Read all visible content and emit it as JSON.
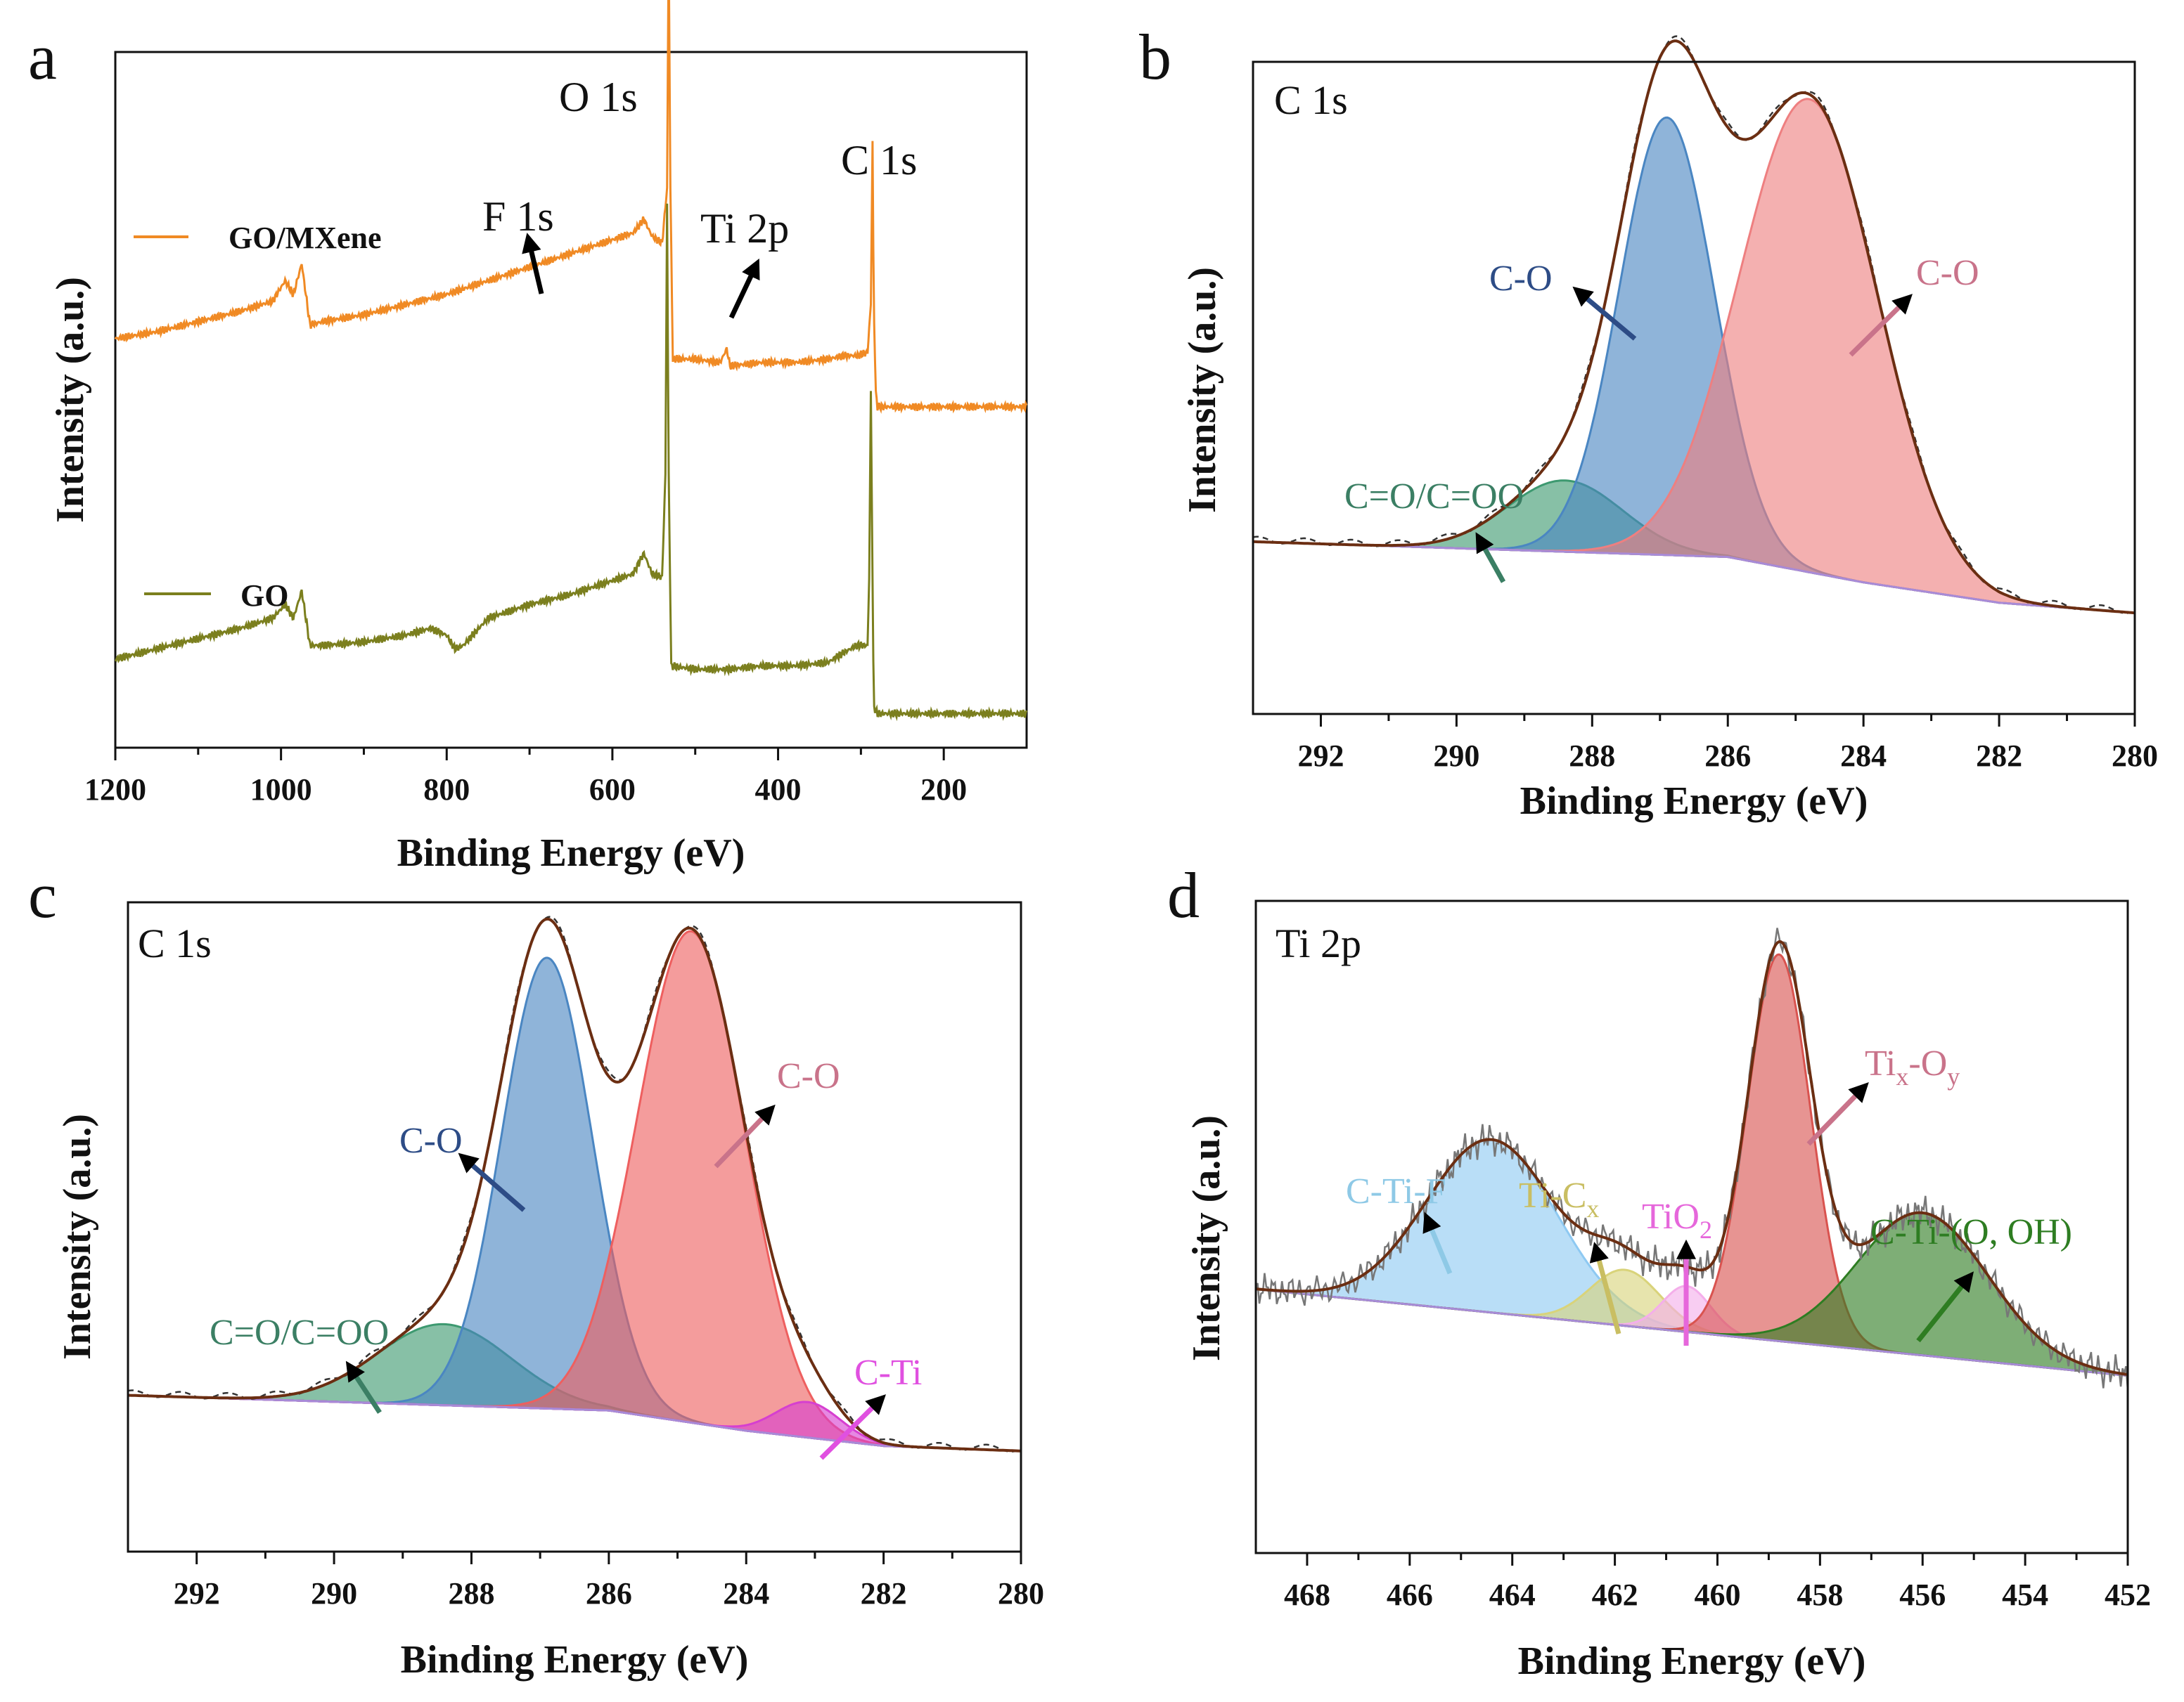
{
  "chart_data": [
    {
      "panel": "a",
      "type": "line",
      "title": "",
      "xlabel": "Binding Energy (eV)",
      "ylabel": "Intensity (a.u.)",
      "xlim": [
        1200,
        100
      ],
      "xticks": [
        1200,
        1000,
        800,
        600,
        400,
        200
      ],
      "x_reversed": true,
      "series": [
        {
          "name": "GO/MXene",
          "color": "#F08A24",
          "points": [
            [
              1200,
              0.6
            ],
            [
              1150,
              0.61
            ],
            [
              1100,
              0.625
            ],
            [
              1050,
              0.64
            ],
            [
              1010,
              0.655
            ],
            [
              995,
              0.685
            ],
            [
              985,
              0.665
            ],
            [
              975,
              0.71
            ],
            [
              965,
              0.62
            ],
            [
              950,
              0.625
            ],
            [
              900,
              0.635
            ],
            [
              850,
              0.65
            ],
            [
              800,
              0.665
            ],
            [
              750,
              0.685
            ],
            [
              700,
              0.705
            ],
            [
              650,
              0.725
            ],
            [
              600,
              0.745
            ],
            [
              575,
              0.755
            ],
            [
              562,
              0.775
            ],
            [
              552,
              0.75
            ],
            [
              540,
              0.74
            ],
            [
              534,
              0.82
            ],
            [
              532,
              1.18
            ],
            [
              530,
              0.82
            ],
            [
              527,
              0.57
            ],
            [
              500,
              0.57
            ],
            [
              470,
              0.565
            ],
            [
              462,
              0.585
            ],
            [
              458,
              0.56
            ],
            [
              420,
              0.565
            ],
            [
              380,
              0.565
            ],
            [
              340,
              0.57
            ],
            [
              320,
              0.575
            ],
            [
              305,
              0.575
            ],
            [
              292,
              0.58
            ],
            [
              288,
              0.65
            ],
            [
              286,
              0.89
            ],
            [
              284.5,
              0.65
            ],
            [
              282,
              0.52
            ],
            [
              280,
              0.5
            ],
            [
              250,
              0.5
            ],
            [
              200,
              0.5
            ],
            [
              150,
              0.5
            ],
            [
              100,
              0.5
            ]
          ]
        },
        {
          "name": "GO",
          "color": "#7B7F1E",
          "points": [
            [
              1200,
              0.13
            ],
            [
              1150,
              0.145
            ],
            [
              1100,
              0.16
            ],
            [
              1050,
              0.175
            ],
            [
              1010,
              0.19
            ],
            [
              995,
              0.21
            ],
            [
              985,
              0.19
            ],
            [
              975,
              0.23
            ],
            [
              965,
              0.15
            ],
            [
              950,
              0.15
            ],
            [
              900,
              0.155
            ],
            [
              850,
              0.165
            ],
            [
              820,
              0.175
            ],
            [
              800,
              0.165
            ],
            [
              790,
              0.145
            ],
            [
              780,
              0.15
            ],
            [
              750,
              0.19
            ],
            [
              700,
              0.21
            ],
            [
              650,
              0.225
            ],
            [
              600,
              0.245
            ],
            [
              575,
              0.255
            ],
            [
              562,
              0.285
            ],
            [
              552,
              0.255
            ],
            [
              540,
              0.25
            ],
            [
              536,
              0.4
            ],
            [
              534,
              0.8
            ],
            [
              532,
              0.4
            ],
            [
              529,
              0.12
            ],
            [
              500,
              0.115
            ],
            [
              460,
              0.115
            ],
            [
              420,
              0.12
            ],
            [
              380,
              0.12
            ],
            [
              340,
              0.125
            ],
            [
              320,
              0.14
            ],
            [
              305,
              0.15
            ],
            [
              292,
              0.15
            ],
            [
              290,
              0.25
            ],
            [
              288,
              0.52
            ],
            [
              286,
              0.25
            ],
            [
              284.5,
              0.06
            ],
            [
              280,
              0.05
            ],
            [
              250,
              0.05
            ],
            [
              200,
              0.05
            ],
            [
              150,
              0.05
            ],
            [
              100,
              0.05
            ]
          ]
        }
      ],
      "legend": [
        "GO/MXene",
        "GO"
      ],
      "annotations": [
        "O 1s",
        "C 1s",
        "F 1s",
        "Ti 2p"
      ]
    },
    {
      "panel": "b",
      "type": "area",
      "title": "C 1s",
      "xlabel": "Binding Energy (eV)",
      "ylabel": "Intensity (a.u.)",
      "xlim": [
        293,
        280
      ],
      "xticks": [
        292,
        290,
        288,
        286,
        284,
        282,
        280
      ],
      "x_reversed": true,
      "background": [
        [
          293,
          0.14
        ],
        [
          286,
          0.11
        ],
        [
          284,
          0.06
        ],
        [
          282,
          0.02
        ],
        [
          280,
          0.0
        ]
      ],
      "components": [
        {
          "label": "C=O/C=OO",
          "center": 288.4,
          "height": 0.14,
          "fwhm": 2.0,
          "color": "#3D9970"
        },
        {
          "label": "C-O",
          "center": 286.9,
          "height": 0.86,
          "fwhm": 1.65,
          "color": "#4A86C2"
        },
        {
          "label": "C-O",
          "center": 284.8,
          "height": 0.93,
          "fwhm": 2.4,
          "color": "#EE7F80"
        }
      ],
      "annotations": [
        "C=O/C=OO",
        "C-O",
        "C-O"
      ]
    },
    {
      "panel": "c",
      "type": "area",
      "title": "C 1s",
      "xlabel": "Binding Energy (eV)",
      "ylabel": "Intensity (a.u.)",
      "xlim": [
        293,
        280
      ],
      "xticks": [
        292,
        290,
        288,
        286,
        284,
        282,
        280
      ],
      "x_reversed": true,
      "background": [
        [
          293,
          0.11
        ],
        [
          286,
          0.08
        ],
        [
          284,
          0.04
        ],
        [
          282,
          0.01
        ],
        [
          280,
          0.0
        ]
      ],
      "components": [
        {
          "label": "C=O/C=OO",
          "center": 288.4,
          "height": 0.16,
          "fwhm": 2.3,
          "color": "#3D9970"
        },
        {
          "label": "C-O",
          "center": 286.9,
          "height": 0.89,
          "fwhm": 1.55,
          "color": "#4A86C2"
        },
        {
          "label": "C-O",
          "center": 284.8,
          "height": 0.97,
          "fwhm": 1.85,
          "color": "#EE5F5F"
        },
        {
          "label": "C-Ti",
          "center": 283.1,
          "height": 0.07,
          "fwhm": 1.1,
          "color": "#D63FD0"
        }
      ],
      "annotations": [
        "C=O/C=OO",
        "C-O",
        "C-O",
        "C-Ti"
      ]
    },
    {
      "panel": "d",
      "type": "area",
      "title": "Ti 2p",
      "xlabel": "Binding Energy (eV)",
      "ylabel": "Intensity (a.u.)",
      "xlim": [
        469,
        452
      ],
      "xticks": [
        468,
        466,
        464,
        462,
        460,
        458,
        456,
        454,
        452
      ],
      "x_reversed": true,
      "background": [
        [
          469,
          0.32
        ],
        [
          452,
          0.15
        ]
      ],
      "components": [
        {
          "label": "C-Ti-F",
          "center": 464.4,
          "height": 0.34,
          "fwhm": 3.0,
          "color": "#8EC9F2"
        },
        {
          "label": "Ti-Cx",
          "center": 461.8,
          "height": 0.11,
          "fwhm": 1.6,
          "color": "#D9D37A"
        },
        {
          "label": "TiO2",
          "center": 460.6,
          "height": 0.09,
          "fwhm": 1.1,
          "color": "#F4AEEA"
        },
        {
          "label": "Tix-Oy",
          "center": 458.8,
          "height": 0.76,
          "fwhm": 1.45,
          "color": "#D9534F"
        },
        {
          "label": "C-Ti-(O, OH)",
          "center": 456.0,
          "height": 0.28,
          "fwhm": 3.0,
          "color": "#2E7D22"
        }
      ],
      "annotations": [
        "C-Ti-F",
        "Ti-Cx",
        "TiO2",
        "Tix-Oy",
        "C-Ti-(O, OH)"
      ]
    }
  ],
  "labels": {
    "panel_letters": [
      "a",
      "b",
      "c",
      "d"
    ],
    "xlabel": "Binding Energy (eV)",
    "ylabel": "Intensity (a.u.)",
    "a": {
      "o1s": "O 1s",
      "c1s": "C 1s",
      "f1s": "F 1s",
      "ti2p": "Ti 2p",
      "legend_gomxene": "GO/MXene",
      "legend_go": "GO"
    },
    "b": {
      "region": "C 1s",
      "c_o_left": "C-O",
      "c_o_right": "C-O",
      "c_eq_o": "C=O/C=OO"
    },
    "c": {
      "region": "C 1s",
      "c_o_left": "C-O",
      "c_o_right": "C-O",
      "c_eq_o": "C=O/C=OO",
      "c_ti": "C-Ti"
    },
    "d": {
      "region": "Ti 2p",
      "c_ti_f": "C-Ti-F",
      "ti_c_base": "Ti-C",
      "ti_c_sub": "x",
      "tio_base": "TiO",
      "tio_sub": "2",
      "tixoy_ti": "Ti",
      "tixoy_x": "x",
      "tixoy_o": "-O",
      "tixoy_y": "y",
      "c_ti_o_oh": "C-Ti-(O, OH)"
    }
  },
  "colors": {
    "axis": "#111111",
    "envelope": "#6B2E12",
    "raw_dashed": "#333333",
    "raw_noisy": "#777777",
    "background_line": "#A78BD8"
  }
}
